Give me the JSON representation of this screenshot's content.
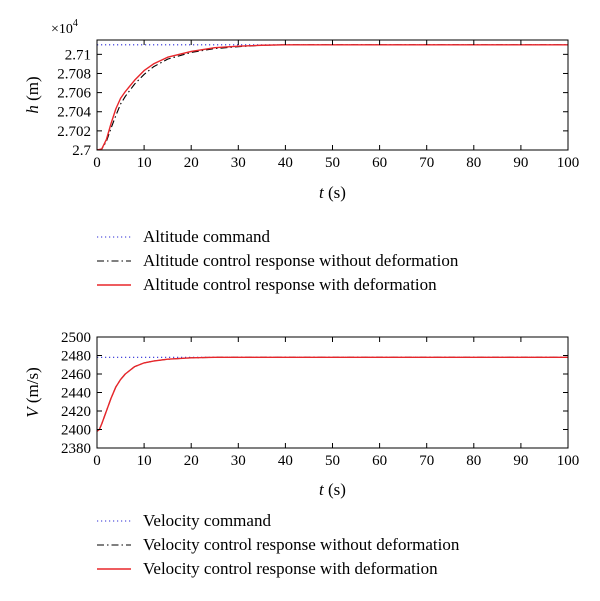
{
  "chart_data": [
    {
      "type": "line",
      "xlabel_var": "t",
      "xlabel_unit": "(s)",
      "ylabel_var": "h",
      "ylabel_unit": "(m)",
      "y_exponent": "×10",
      "y_exponent_power": "4",
      "xlim": [
        0,
        100
      ],
      "ylim": [
        2.7,
        2.7115
      ],
      "x_ticks": [
        0,
        10,
        20,
        30,
        40,
        50,
        60,
        70,
        80,
        90,
        100
      ],
      "y_ticks": [
        2.7,
        2.702,
        2.704,
        2.706,
        2.708,
        2.71
      ],
      "y_tick_labels": [
        "2.7",
        "2.702",
        "2.704",
        "2.706",
        "2.708",
        "2.71"
      ],
      "grid": false,
      "legend_position": "below",
      "series": [
        {
          "name": "Altitude command",
          "color": "#2b2bd6",
          "style": "dotted",
          "x": [
            0,
            100
          ],
          "y": [
            2.711,
            2.711
          ]
        },
        {
          "name": "Altitude control response without deformation",
          "color": "#000000",
          "style": "dashdot",
          "x": [
            0,
            1,
            2,
            3,
            4,
            5,
            6,
            8,
            10,
            12,
            15,
            20,
            25,
            30,
            35,
            40,
            50,
            60,
            70,
            80,
            90,
            100
          ],
          "y": [
            2.7,
            2.7001,
            2.7009,
            2.7023,
            2.7036,
            2.7048,
            2.7056,
            2.7069,
            2.7079,
            2.7087,
            2.7095,
            2.7102,
            2.7106,
            2.7108,
            2.71095,
            2.711,
            2.711,
            2.711,
            2.711,
            2.711,
            2.711,
            2.711
          ]
        },
        {
          "name": "Altitude control response with deformation",
          "color": "#e8262a",
          "style": "solid",
          "x": [
            0,
            1,
            2,
            3,
            4,
            5,
            6,
            8,
            10,
            12,
            15,
            20,
            25,
            30,
            35,
            40,
            50,
            60,
            70,
            80,
            90,
            100
          ],
          "y": [
            2.7,
            2.7001,
            2.7011,
            2.7028,
            2.7043,
            2.7054,
            2.7061,
            2.7073,
            2.7083,
            2.709,
            2.7097,
            2.7103,
            2.7107,
            2.71085,
            2.71095,
            2.711,
            2.711,
            2.711,
            2.711,
            2.711,
            2.711,
            2.711
          ]
        }
      ]
    },
    {
      "type": "line",
      "xlabel_var": "t",
      "xlabel_unit": "(s)",
      "ylabel_var": "V",
      "ylabel_unit": "(m/s)",
      "xlim": [
        0,
        100
      ],
      "ylim": [
        2380,
        2500
      ],
      "x_ticks": [
        0,
        10,
        20,
        30,
        40,
        50,
        60,
        70,
        80,
        90,
        100
      ],
      "y_ticks": [
        2380,
        2400,
        2420,
        2440,
        2460,
        2480,
        2500
      ],
      "y_tick_labels": [
        "2380",
        "2400",
        "2420",
        "2440",
        "2460",
        "2480",
        "2500"
      ],
      "grid": false,
      "legend_position": "below",
      "series": [
        {
          "name": "Velocity command",
          "color": "#2b2bd6",
          "style": "dotted",
          "x": [
            0,
            100
          ],
          "y": [
            2478,
            2478
          ]
        },
        {
          "name": "Velocity control response without deformation",
          "color": "#000000",
          "style": "dashdot",
          "x": [
            0,
            0.5,
            1,
            2,
            3,
            4,
            5,
            6,
            8,
            10,
            12,
            15,
            20,
            25,
            30,
            40,
            60,
            80,
            100
          ],
          "y": [
            2398,
            2400,
            2406,
            2420,
            2434,
            2446,
            2454,
            2460,
            2468,
            2472,
            2474,
            2476,
            2477.5,
            2478,
            2478,
            2478,
            2478,
            2478,
            2478
          ]
        },
        {
          "name": "Velocity control response with deformation",
          "color": "#e8262a",
          "style": "solid",
          "x": [
            0,
            0.5,
            1,
            2,
            3,
            4,
            5,
            6,
            8,
            10,
            12,
            15,
            20,
            25,
            30,
            40,
            60,
            80,
            100
          ],
          "y": [
            2398,
            2400,
            2406,
            2420,
            2434,
            2446,
            2454,
            2460,
            2468,
            2472,
            2474,
            2476,
            2477.5,
            2478,
            2478,
            2478,
            2478,
            2478,
            2478
          ]
        }
      ]
    }
  ]
}
